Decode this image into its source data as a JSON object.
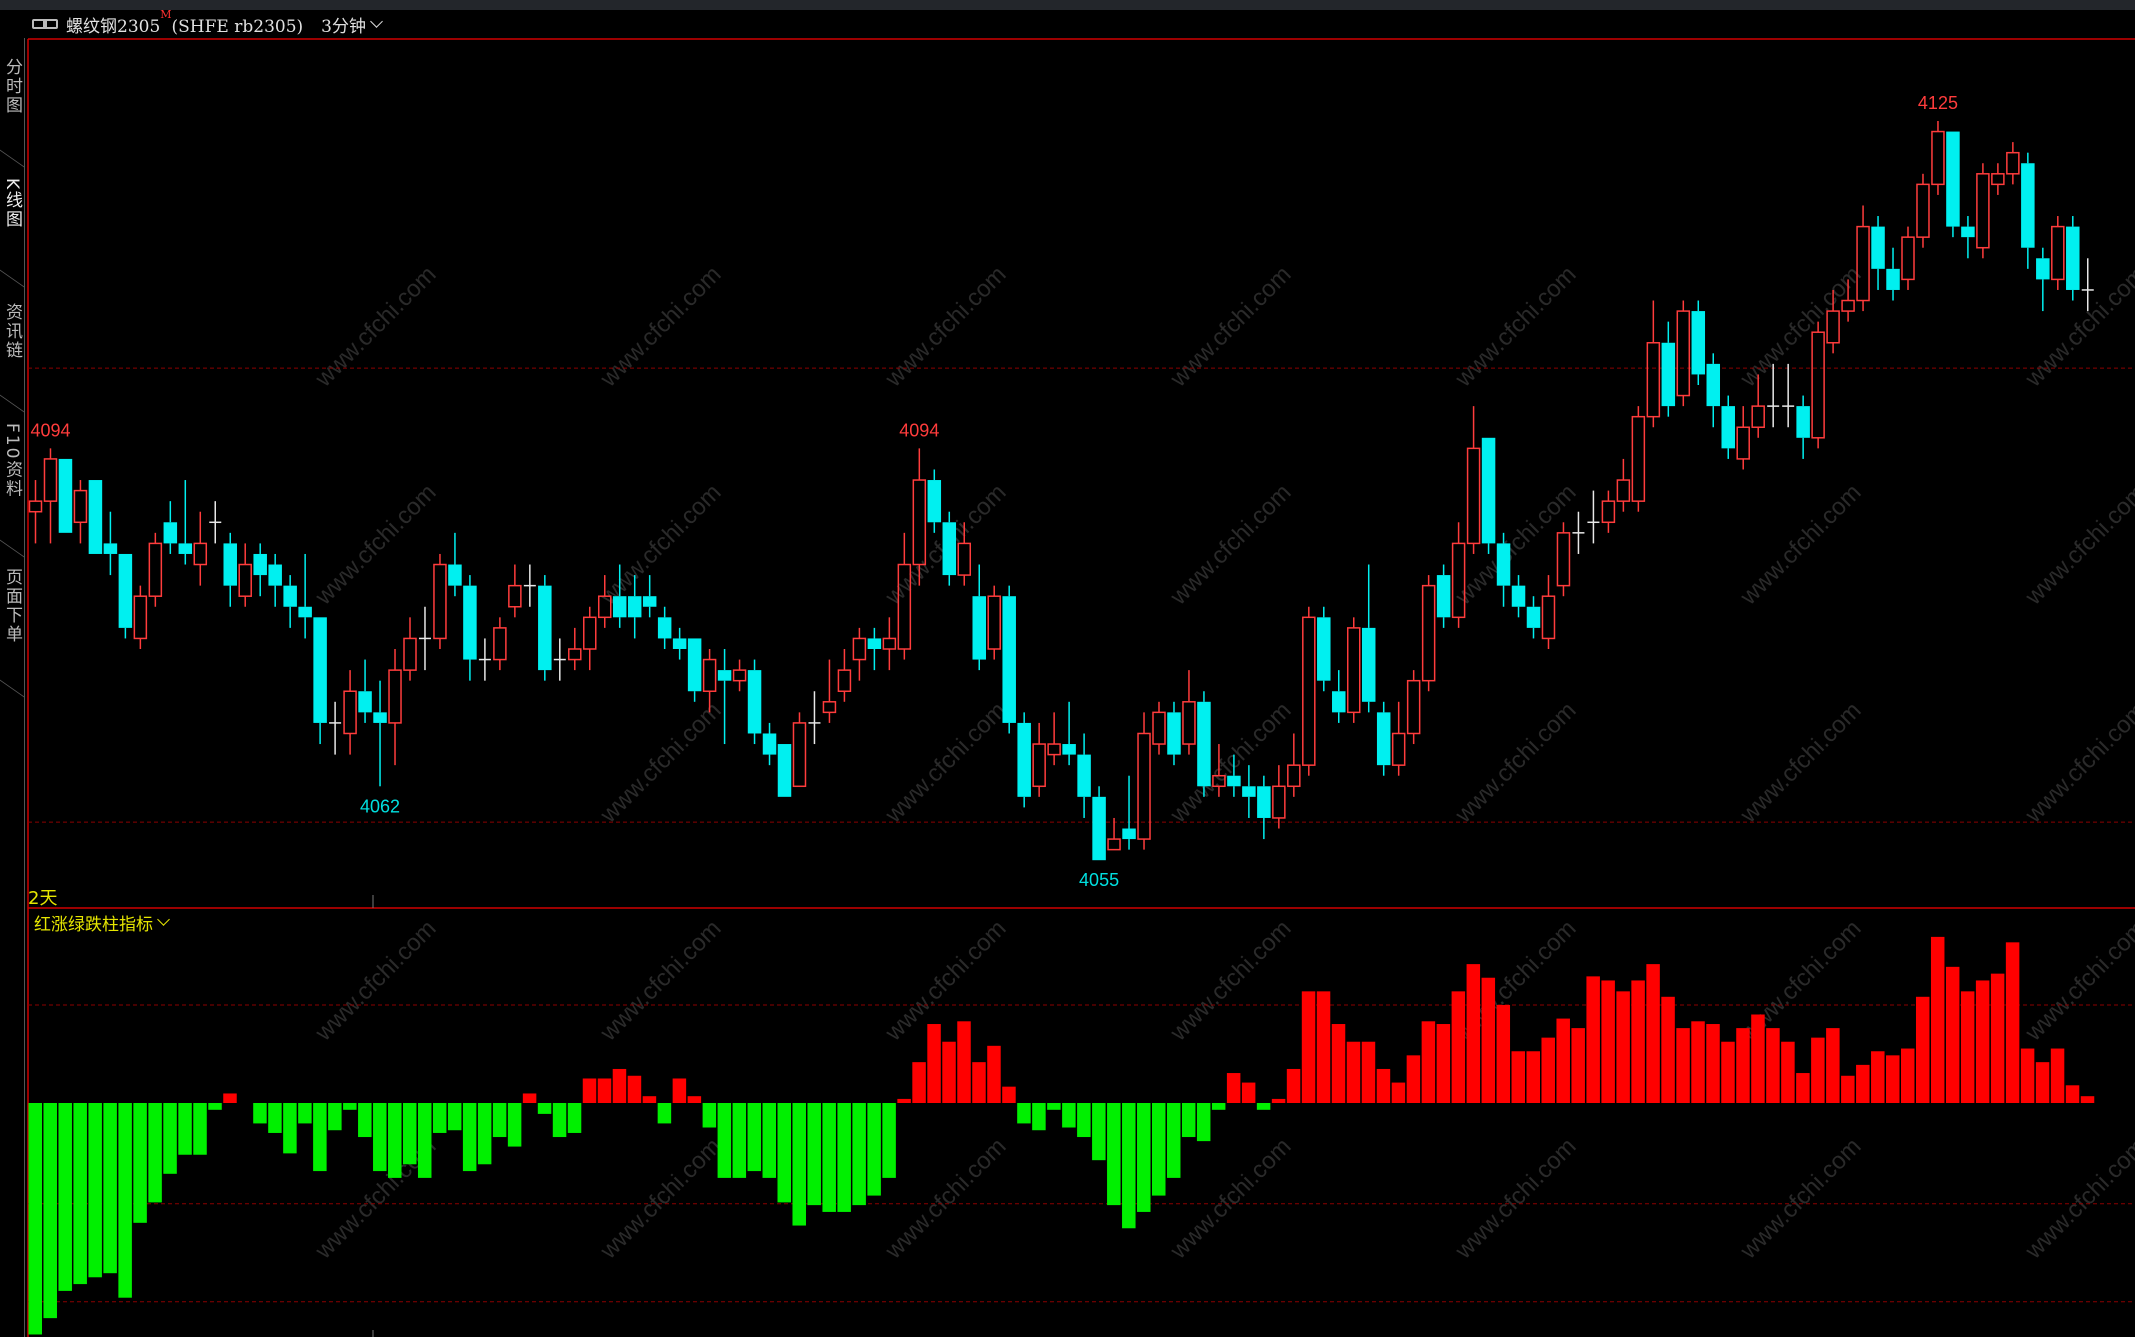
{
  "header": {
    "title": "螺纹钢2305",
    "badge": "M",
    "code": "(SHFE rb2305)",
    "period": "3分钟",
    "icons": {
      "link": "link-icon",
      "period": "chevron-down-icon"
    }
  },
  "sidebar": {
    "items": [
      {
        "label": "分时图",
        "active": false
      },
      {
        "label": "K线图",
        "active": true
      },
      {
        "label": "资讯链",
        "active": false
      },
      {
        "label": "F10资料",
        "active": false
      },
      {
        "label": "页面下单",
        "active": false
      }
    ]
  },
  "days_label": "2天",
  "indicator": {
    "name": "红涨绿跌柱指标"
  },
  "watermark": "www.cfchi.com",
  "colors": {
    "up": "#ff3c3c",
    "down": "#00f0f0",
    "doji": "#e8e8e8",
    "bar_up": "#ff0000",
    "bar_down": "#00f000",
    "border": "#d00000",
    "grid": "#8b0000"
  },
  "chart_data": [
    {
      "type": "candlestick",
      "title": "",
      "ylim": [
        4052,
        4128
      ],
      "reference_lines": [
        4101.6,
        4058.6
      ],
      "fields": [
        "open",
        "high",
        "low",
        "close"
      ],
      "candles": [
        [
          4088,
          4091,
          4085,
          4089
        ],
        [
          4089,
          4094,
          4085,
          4093
        ],
        [
          4093,
          4093,
          4086,
          4086
        ],
        [
          4087,
          4091,
          4085,
          4090
        ],
        [
          4091,
          4091,
          4084,
          4084
        ],
        [
          4085,
          4088,
          4082,
          4084
        ],
        [
          4084,
          4084,
          4076,
          4077
        ],
        [
          4076,
          4081,
          4075,
          4080
        ],
        [
          4080,
          4086,
          4079,
          4085
        ],
        [
          4087,
          4089,
          4084,
          4085
        ],
        [
          4085,
          4091,
          4083,
          4084
        ],
        [
          4083,
          4088,
          4081,
          4085
        ],
        [
          4087,
          4089,
          4085,
          4087
        ],
        [
          4085,
          4086,
          4079,
          4081
        ],
        [
          4080,
          4085,
          4079,
          4083
        ],
        [
          4084,
          4085,
          4080,
          4082
        ],
        [
          4083,
          4084,
          4079,
          4081
        ],
        [
          4081,
          4082,
          4077,
          4079
        ],
        [
          4079,
          4084,
          4076,
          4078
        ],
        [
          4078,
          4078,
          4066,
          4068
        ],
        [
          4068,
          4070,
          4065,
          4068
        ],
        [
          4067,
          4073,
          4065,
          4071
        ],
        [
          4071,
          4074,
          4068,
          4069
        ],
        [
          4069,
          4072,
          4062,
          4068
        ],
        [
          4068,
          4075,
          4064,
          4073
        ],
        [
          4073,
          4078,
          4072,
          4076
        ],
        [
          4076,
          4079,
          4073,
          4076
        ],
        [
          4076,
          4084,
          4075,
          4083
        ],
        [
          4083,
          4086,
          4080,
          4081
        ],
        [
          4081,
          4082,
          4072,
          4074
        ],
        [
          4074,
          4076,
          4072,
          4074
        ],
        [
          4074,
          4078,
          4073,
          4077
        ],
        [
          4079,
          4083,
          4078,
          4081
        ],
        [
          4081,
          4083,
          4079,
          4081
        ],
        [
          4081,
          4082,
          4072,
          4073
        ],
        [
          4074,
          4076,
          4072,
          4074
        ],
        [
          4074,
          4077,
          4073,
          4075
        ],
        [
          4075,
          4079,
          4073,
          4078
        ],
        [
          4078,
          4082,
          4077,
          4080
        ],
        [
          4080,
          4083,
          4077,
          4078
        ],
        [
          4080,
          4082,
          4076,
          4078
        ],
        [
          4080,
          4082,
          4078,
          4079
        ],
        [
          4078,
          4079,
          4075,
          4076
        ],
        [
          4076,
          4077,
          4074,
          4075
        ],
        [
          4076,
          4076,
          4070,
          4071
        ],
        [
          4071,
          4075,
          4069,
          4074
        ],
        [
          4073,
          4075,
          4066,
          4072
        ],
        [
          4072,
          4074,
          4071,
          4073
        ],
        [
          4073,
          4074,
          4066,
          4067
        ],
        [
          4067,
          4068,
          4064,
          4065
        ],
        [
          4066,
          4066,
          4061,
          4061
        ],
        [
          4062,
          4069,
          4062,
          4068
        ],
        [
          4068,
          4071,
          4066,
          4068
        ],
        [
          4069,
          4074,
          4068,
          4070
        ],
        [
          4071,
          4075,
          4070,
          4073
        ],
        [
          4074,
          4077,
          4072,
          4076
        ],
        [
          4076,
          4077,
          4073,
          4075
        ],
        [
          4075,
          4078,
          4073,
          4076
        ],
        [
          4075,
          4086,
          4074,
          4083
        ],
        [
          4083,
          4094,
          4081,
          4091
        ],
        [
          4091,
          4092,
          4086,
          4087
        ],
        [
          4087,
          4088,
          4081,
          4082
        ],
        [
          4082,
          4087,
          4081,
          4085
        ],
        [
          4080,
          4083,
          4073,
          4074
        ],
        [
          4075,
          4081,
          4074,
          4080
        ],
        [
          4080,
          4081,
          4067,
          4068
        ],
        [
          4068,
          4069,
          4060,
          4061
        ],
        [
          4062,
          4068,
          4061,
          4066
        ],
        [
          4065,
          4069,
          4064,
          4066
        ],
        [
          4066,
          4070,
          4064,
          4065
        ],
        [
          4065,
          4067,
          4059,
          4061
        ],
        [
          4061,
          4062,
          4055,
          4055
        ],
        [
          4056,
          4059,
          4056,
          4057
        ],
        [
          4058,
          4063,
          4056,
          4057
        ],
        [
          4057,
          4069,
          4056,
          4067
        ],
        [
          4066,
          4070,
          4065,
          4069
        ],
        [
          4069,
          4070,
          4064,
          4065
        ],
        [
          4066,
          4073,
          4065,
          4070
        ],
        [
          4070,
          4071,
          4061,
          4062
        ],
        [
          4062,
          4066,
          4061,
          4063
        ],
        [
          4063,
          4065,
          4061,
          4062
        ],
        [
          4062,
          4064,
          4059,
          4061
        ],
        [
          4062,
          4063,
          4057,
          4059
        ],
        [
          4059,
          4064,
          4058,
          4062
        ],
        [
          4062,
          4067,
          4061,
          4064
        ],
        [
          4064,
          4079,
          4063,
          4078
        ],
        [
          4078,
          4079,
          4071,
          4072
        ],
        [
          4071,
          4073,
          4068,
          4069
        ],
        [
          4069,
          4078,
          4068,
          4077
        ],
        [
          4077,
          4083,
          4069,
          4070
        ],
        [
          4069,
          4070,
          4063,
          4064
        ],
        [
          4064,
          4070,
          4063,
          4067
        ],
        [
          4067,
          4073,
          4066,
          4072
        ],
        [
          4072,
          4082,
          4071,
          4081
        ],
        [
          4082,
          4083,
          4077,
          4078
        ],
        [
          4078,
          4087,
          4077,
          4085
        ],
        [
          4085,
          4098,
          4084,
          4094
        ],
        [
          4095,
          4095,
          4084,
          4085
        ],
        [
          4085,
          4086,
          4079,
          4081
        ],
        [
          4081,
          4082,
          4078,
          4079
        ],
        [
          4079,
          4080,
          4076,
          4077
        ],
        [
          4076,
          4082,
          4075,
          4080
        ],
        [
          4081,
          4087,
          4080,
          4086
        ],
        [
          4086,
          4088,
          4084,
          4086
        ],
        [
          4087,
          4090,
          4085,
          4087
        ],
        [
          4087,
          4090,
          4086,
          4089
        ],
        [
          4089,
          4093,
          4088,
          4091
        ],
        [
          4089,
          4098,
          4088,
          4097
        ],
        [
          4097,
          4108,
          4096,
          4104
        ],
        [
          4104,
          4106,
          4097,
          4098
        ],
        [
          4099,
          4108,
          4098,
          4107
        ],
        [
          4107,
          4108,
          4100,
          4101
        ],
        [
          4102,
          4103,
          4096,
          4098
        ],
        [
          4098,
          4099,
          4093,
          4094
        ],
        [
          4093,
          4098,
          4092,
          4096
        ],
        [
          4096,
          4101,
          4095,
          4098
        ],
        [
          4098,
          4102,
          4096,
          4098
        ],
        [
          4098,
          4102,
          4096,
          4098
        ],
        [
          4098,
          4099,
          4093,
          4095
        ],
        [
          4095,
          4106,
          4094,
          4105
        ],
        [
          4104,
          4109,
          4103,
          4107
        ],
        [
          4107,
          4110,
          4106,
          4108
        ],
        [
          4108,
          4117,
          4107,
          4115
        ],
        [
          4115,
          4116,
          4109,
          4111
        ],
        [
          4111,
          4113,
          4108,
          4109
        ],
        [
          4110,
          4115,
          4109,
          4114
        ],
        [
          4114,
          4120,
          4113,
          4119
        ],
        [
          4119,
          4125,
          4118,
          4124
        ],
        [
          4124,
          4124,
          4114,
          4115
        ],
        [
          4115,
          4116,
          4112,
          4114
        ],
        [
          4113,
          4121,
          4112,
          4120
        ],
        [
          4119,
          4121,
          4118,
          4120
        ],
        [
          4120,
          4123,
          4119,
          4122
        ],
        [
          4121,
          4122,
          4111,
          4113
        ],
        [
          4112,
          4113,
          4107,
          4110
        ],
        [
          4110,
          4116,
          4109,
          4115
        ],
        [
          4115,
          4116,
          4108,
          4109
        ],
        [
          4109,
          4112,
          4107,
          4109
        ]
      ],
      "annotations": [
        {
          "text": "4094",
          "candle": 2,
          "pos": "above",
          "color": "#ff3c3c"
        },
        {
          "text": "4062",
          "candle": 24,
          "pos": "below",
          "color": "#00e0e0"
        },
        {
          "text": "4094",
          "candle": 60,
          "pos": "above",
          "color": "#ff3c3c"
        },
        {
          "text": "4055",
          "candle": 72,
          "pos": "below",
          "color": "#00e0e0"
        },
        {
          "text": "4125",
          "candle": 128,
          "pos": "above",
          "color": "#ff3c3c"
        }
      ]
    },
    {
      "type": "bar",
      "title": "红涨绿跌柱指标",
      "ylim": [
        -175,
        125
      ],
      "reference_lines": [
        72,
        -74,
        -146
      ],
      "values": [
        -170,
        -158,
        -138,
        -133,
        -128,
        -125,
        -143,
        -88,
        -73,
        -52,
        -38,
        -38,
        -5,
        7,
        0,
        -15,
        -22,
        -37,
        -15,
        -50,
        -20,
        -5,
        -25,
        -50,
        -55,
        -45,
        -55,
        -22,
        -20,
        -50,
        -45,
        -25,
        -32,
        7,
        -8,
        -25,
        -22,
        18,
        18,
        25,
        20,
        5,
        -15,
        18,
        5,
        -18,
        -55,
        -55,
        -50,
        -55,
        -73,
        -90,
        -75,
        -80,
        -80,
        -75,
        -68,
        -55,
        3,
        30,
        58,
        45,
        60,
        30,
        42,
        12,
        -15,
        -20,
        -5,
        -18,
        -25,
        -42,
        -75,
        -92,
        -80,
        -68,
        -55,
        -25,
        -28,
        -5,
        22,
        15,
        -5,
        3,
        25,
        82,
        82,
        58,
        45,
        45,
        25,
        15,
        35,
        60,
        58,
        82,
        102,
        92,
        72,
        38,
        38,
        48,
        62,
        55,
        93,
        90,
        82,
        90,
        102,
        78,
        55,
        60,
        58,
        45,
        55,
        65,
        55,
        45,
        22,
        48,
        55,
        20,
        28,
        38,
        35,
        40,
        78,
        122,
        100,
        82,
        90,
        95,
        118,
        40,
        30,
        40,
        13,
        5
      ]
    }
  ]
}
